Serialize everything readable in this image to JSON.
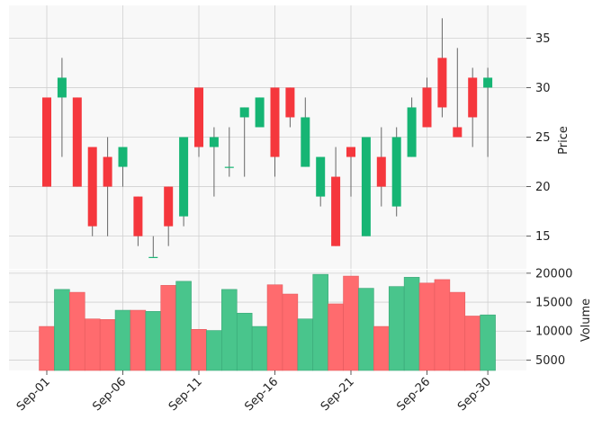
{
  "chart_data": {
    "type": "candlestick",
    "style": "yahoo-like",
    "colors": {
      "up": "#16b574",
      "down": "#f5373d",
      "up_volume": "#49c58c",
      "down_volume": "#ff6b6e",
      "grid": "#d0d0d0",
      "panel_bg": "#f8f8f8",
      "wick": "#666666"
    },
    "dates": [
      "Sep-01",
      "Sep-02",
      "Sep-03",
      "Sep-04",
      "Sep-05",
      "Sep-06",
      "Sep-07",
      "Sep-08",
      "Sep-09",
      "Sep-10",
      "Sep-11",
      "Sep-12",
      "Sep-13",
      "Sep-14",
      "Sep-15",
      "Sep-16",
      "Sep-17",
      "Sep-18",
      "Sep-19",
      "Sep-20",
      "Sep-21",
      "Sep-22",
      "Sep-23",
      "Sep-24",
      "Sep-25",
      "Sep-26",
      "Sep-27",
      "Sep-28",
      "Sep-29",
      "Sep-30"
    ],
    "x_tick_labels": [
      "Sep-01",
      "Sep-06",
      "Sep-11",
      "Sep-16",
      "Sep-21",
      "Sep-26",
      "Sep-30"
    ],
    "ohlc": [
      {
        "open": 29,
        "high": 29,
        "low": 20,
        "close": 20
      },
      {
        "open": 29,
        "high": 33,
        "low": 23,
        "close": 31
      },
      {
        "open": 29,
        "high": 29,
        "low": 20,
        "close": 20
      },
      {
        "open": 24,
        "high": 24,
        "low": 15,
        "close": 16
      },
      {
        "open": 23,
        "high": 25,
        "low": 15,
        "close": 20
      },
      {
        "open": 22,
        "high": 24,
        "low": 20,
        "close": 24
      },
      {
        "open": 19,
        "high": 19,
        "low": 14,
        "close": 15
      },
      {
        "open": 12.9,
        "high": 15,
        "low": 12.9,
        "close": 12.9
      },
      {
        "open": 20,
        "high": 20,
        "low": 14,
        "close": 16
      },
      {
        "open": 17,
        "high": 25,
        "low": 16,
        "close": 25
      },
      {
        "open": 30,
        "high": 30,
        "low": 23,
        "close": 24
      },
      {
        "open": 24,
        "high": 26,
        "low": 19,
        "close": 25
      },
      {
        "open": 22,
        "high": 26,
        "low": 21,
        "close": 22
      },
      {
        "open": 27,
        "high": 28,
        "low": 21,
        "close": 28
      },
      {
        "open": 26,
        "high": 29,
        "low": 26,
        "close": 29
      },
      {
        "open": 30,
        "high": 30,
        "low": 21,
        "close": 23
      },
      {
        "open": 30,
        "high": 30,
        "low": 26,
        "close": 27
      },
      {
        "open": 22,
        "high": 29,
        "low": 22,
        "close": 27
      },
      {
        "open": 19,
        "high": 23,
        "low": 18,
        "close": 23
      },
      {
        "open": 21,
        "high": 24,
        "low": 14,
        "close": 14
      },
      {
        "open": 24,
        "high": 24,
        "low": 19,
        "close": 23
      },
      {
        "open": 15,
        "high": 25,
        "low": 15,
        "close": 25
      },
      {
        "open": 23,
        "high": 26,
        "low": 18,
        "close": 20
      },
      {
        "open": 18,
        "high": 26,
        "low": 17,
        "close": 25
      },
      {
        "open": 23,
        "high": 29,
        "low": 23,
        "close": 28
      },
      {
        "open": 30,
        "high": 31,
        "low": 26,
        "close": 26
      },
      {
        "open": 33,
        "high": 37,
        "low": 27,
        "close": 28
      },
      {
        "open": 26,
        "high": 34,
        "low": 25,
        "close": 25
      },
      {
        "open": 31,
        "high": 32,
        "low": 24,
        "close": 27
      },
      {
        "open": 30,
        "high": 32,
        "low": 23,
        "close": 31
      }
    ],
    "volume": [
      10800,
      17200,
      16700,
      12100,
      12000,
      13600,
      13600,
      13400,
      17900,
      18600,
      10300,
      10100,
      17200,
      13100,
      10800,
      18000,
      16400,
      12100,
      19800,
      14700,
      19500,
      17400,
      10800,
      17700,
      19300,
      18300,
      18900,
      16700,
      12600,
      12800
    ],
    "price_axis": {
      "label": "Price",
      "ylim": [
        11.7,
        38.3
      ],
      "ticks": [
        15,
        20,
        25,
        30,
        35
      ]
    },
    "volume_axis": {
      "label": "Volume",
      "ylim": [
        3200,
        20600
      ],
      "ticks": [
        5000,
        10000,
        15000,
        20000
      ]
    },
    "grid": true
  }
}
